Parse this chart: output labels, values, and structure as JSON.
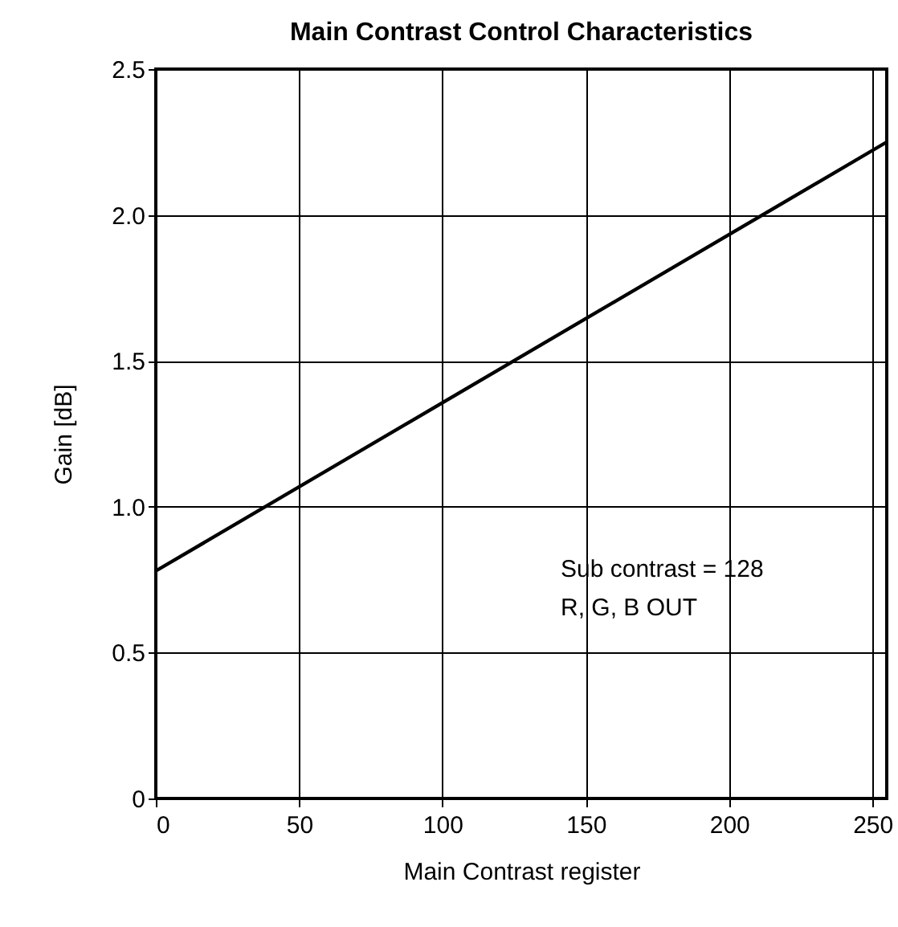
{
  "chart_data": {
    "type": "line",
    "title": "Main Contrast Control Characteristics",
    "xlabel": "Main Contrast register",
    "ylabel": "Gain [dB]",
    "x": [
      0,
      255
    ],
    "series": [
      {
        "color": "#000000",
        "values": [
          0.78,
          2.25
        ]
      }
    ],
    "xlim": [
      0,
      255
    ],
    "xticks": [
      0,
      50,
      100,
      150,
      200,
      250
    ],
    "ylim": [
      0,
      2.5
    ],
    "yticks": [
      0,
      0.5,
      {
        "value": 1,
        "label": "1.0"
      },
      1.5,
      {
        "value": 2,
        "label": "2.0"
      },
      2.5
    ],
    "grid": true,
    "marker": "none",
    "line_style": "solid",
    "annotations": [
      "Sub contrast = 128",
      "R, G, B OUT"
    ]
  }
}
